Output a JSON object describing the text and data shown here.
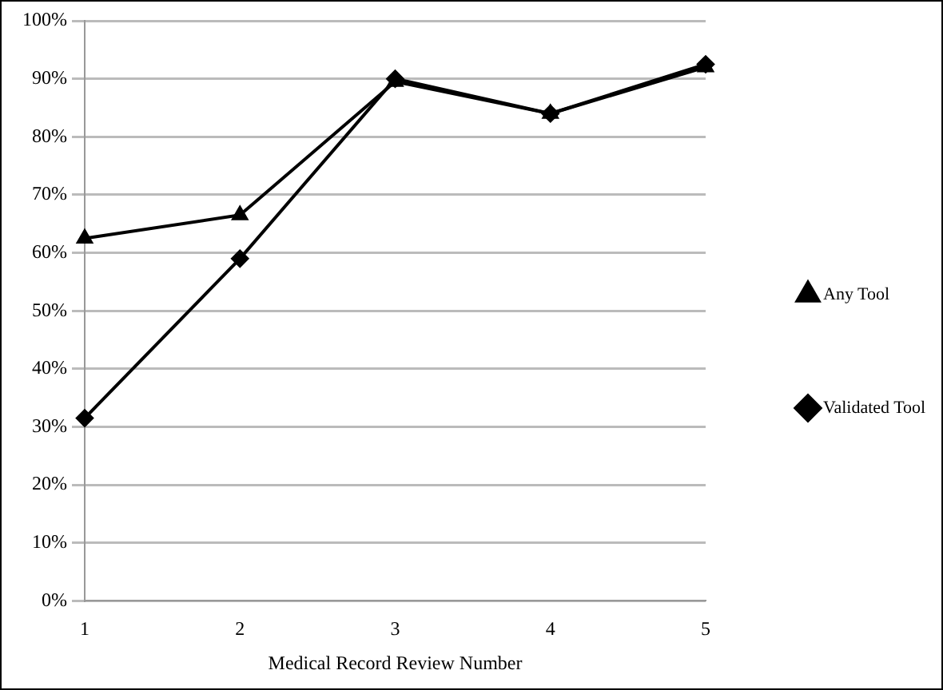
{
  "chart_data": {
    "type": "line",
    "xlabel": "Medical Record Review Number",
    "categories": [
      "1",
      "2",
      "3",
      "4",
      "5"
    ],
    "series": [
      {
        "name": "Any Tool",
        "color": "#000000",
        "marker": "triangle",
        "values": [
          62.5,
          66.5,
          89.5,
          84,
          92
        ]
      },
      {
        "name": "Validated Tool",
        "color": "#000000",
        "marker": "diamond",
        "values": [
          31.5,
          59,
          90,
          84,
          92.5
        ]
      }
    ],
    "ylim": [
      0,
      100
    ],
    "yticks": [
      {
        "value": 0,
        "label": "0%"
      },
      {
        "value": 10,
        "label": "10%"
      },
      {
        "value": 20,
        "label": "20%"
      },
      {
        "value": 30,
        "label": "30%"
      },
      {
        "value": 40,
        "label": "40%"
      },
      {
        "value": 50,
        "label": "50%"
      },
      {
        "value": 60,
        "label": "60%"
      },
      {
        "value": 70,
        "label": "70%"
      },
      {
        "value": 80,
        "label": "80%"
      },
      {
        "value": 90,
        "label": "90%"
      },
      {
        "value": 100,
        "label": "100%"
      }
    ],
    "grid": "y",
    "legend": "right",
    "line_style": "solid"
  }
}
